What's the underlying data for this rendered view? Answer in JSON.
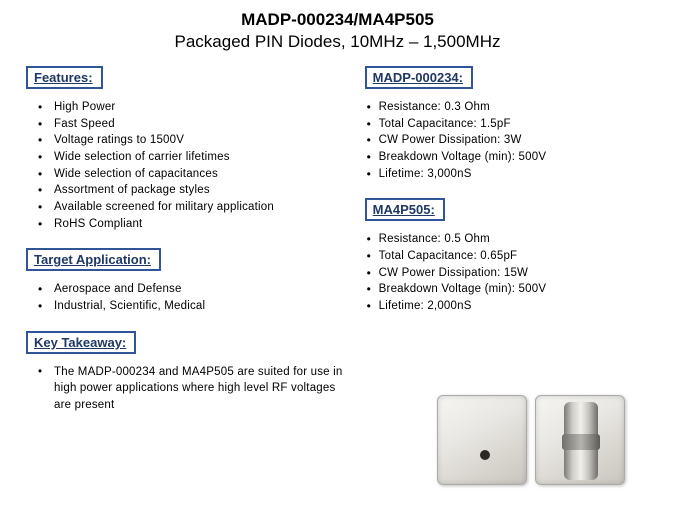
{
  "title": "MADP-000234/MA4P505",
  "subtitle": "Packaged PIN Diodes, 10MHz – 1,500MHz",
  "colors": {
    "box_border": "#2f5597",
    "header_text": "#1f3864",
    "body_text": "#000000",
    "background": "#ffffff"
  },
  "left": {
    "features": {
      "header": "Features:",
      "items": [
        "High Power",
        "Fast Speed",
        "Voltage ratings to 1500V",
        "Wide selection of carrier lifetimes",
        "Wide selection of capacitances",
        "Assortment of package styles",
        "Available screened for military application",
        "RoHS Compliant"
      ]
    },
    "target_app": {
      "header": "Target Application:",
      "items": [
        "Aerospace and Defense",
        "Industrial, Scientific, Medical"
      ]
    },
    "key_takeaway": {
      "header": "Key Takeaway:",
      "text": "The MADP-000234 and MA4P505 are suited for use in high power applications where high level RF voltages are present"
    }
  },
  "right": {
    "part1": {
      "header": "MADP-000234:",
      "items": [
        "Resistance: 0.3 Ohm",
        "Total Capacitance: 1.5pF",
        "CW Power Dissipation: 3W",
        "Breakdown Voltage (min): 500V",
        "Lifetime: 3,000nS"
      ]
    },
    "part2": {
      "header": "MA4P505:",
      "items": [
        "Resistance: 0.5 Ohm",
        "Total Capacitance: 0.65pF",
        "CW Power Dissipation: 15W",
        "Breakdown Voltage (min): 500V",
        "Lifetime: 2,000nS"
      ]
    }
  }
}
